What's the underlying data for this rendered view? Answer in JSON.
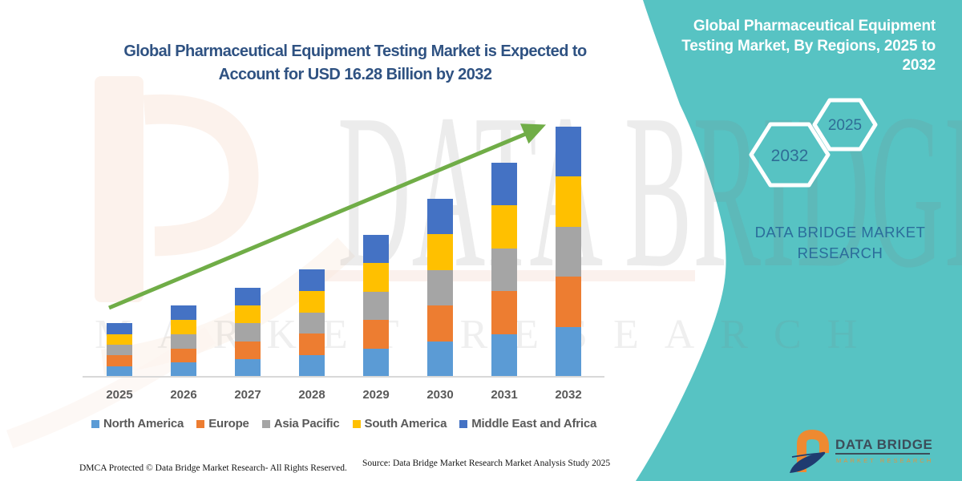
{
  "left_panel": {
    "title_line1": "Global Pharmaceutical Equipment Testing Market is Expected to",
    "title_line2": "Account for USD 16.28 Billion by 2032",
    "footer_dmca": "DMCA Protected © Data Bridge Market Research-  All Rights Reserved.",
    "footer_source": "Source: Data Bridge Market Research  Market Analysis Study 2025"
  },
  "chart_data": {
    "type": "bar",
    "stacked": true,
    "unit": "USD Billion",
    "title": "Global Pharmaceutical Equipment Testing Market is Expected to Account for USD 16.28 Billion by 2032",
    "categories": [
      "2025",
      "2026",
      "2027",
      "2028",
      "2029",
      "2030",
      "2031",
      "2032"
    ],
    "totals": [
      3.48,
      4.63,
      5.81,
      7.0,
      9.25,
      11.61,
      13.94,
      16.28
    ],
    "series": [
      {
        "name": "North America",
        "color": "#5B9BD5",
        "values": [
          0.696,
          0.926,
          1.162,
          1.4,
          1.85,
          2.322,
          2.788,
          3.256
        ]
      },
      {
        "name": "Europe",
        "color": "#ED7D31",
        "values": [
          0.696,
          0.926,
          1.162,
          1.4,
          1.85,
          2.322,
          2.788,
          3.256
        ]
      },
      {
        "name": "Asia Pacific",
        "color": "#A5A5A5",
        "values": [
          0.696,
          0.926,
          1.162,
          1.4,
          1.85,
          2.322,
          2.788,
          3.256
        ]
      },
      {
        "name": "South America",
        "color": "#FFC000",
        "values": [
          0.696,
          0.926,
          1.162,
          1.4,
          1.85,
          2.322,
          2.788,
          3.256
        ]
      },
      {
        "name": "Middle East and Africa",
        "color": "#4472C4",
        "values": [
          0.696,
          0.926,
          1.162,
          1.4,
          1.85,
          2.322,
          2.788,
          3.256
        ]
      }
    ],
    "ylim": [
      0,
      16.28
    ],
    "grid": false,
    "legend_position": "bottom",
    "trend_arrow": true
  },
  "watermarks": {
    "big_text": "DATA BRIDGE",
    "row_text": "MARKET RESEARCH"
  },
  "right_panel": {
    "title_line1": "Global Pharmaceutical Equipment",
    "title_line2": "Testing Market, By Regions, 2025 to",
    "title_line3": "2032",
    "hex_back_year": "2032",
    "hex_front_year": "2025",
    "brand_line1": "DATA BRIDGE MARKET",
    "brand_line2": "RESEARCH",
    "logo_name": "DATA BRIDGE",
    "logo_subtitle": "MARKET RESEARCH"
  },
  "colors": {
    "teal": "#57C3C3",
    "title_blue": "#2F5282",
    "arrow_green": "#70AD47",
    "axis_gray": "#D8D8D8",
    "label_gray": "#595959",
    "hex_year_blue": "#2F6D96",
    "brand_blue": "#2B6D9B",
    "logo_slate": "#3C4D5A",
    "logo_orange": "#E0953F",
    "logo_navy": "#1F3B70",
    "logo_b_orange": "#EE8A31",
    "watermark_peach": "#F7DBC9"
  }
}
